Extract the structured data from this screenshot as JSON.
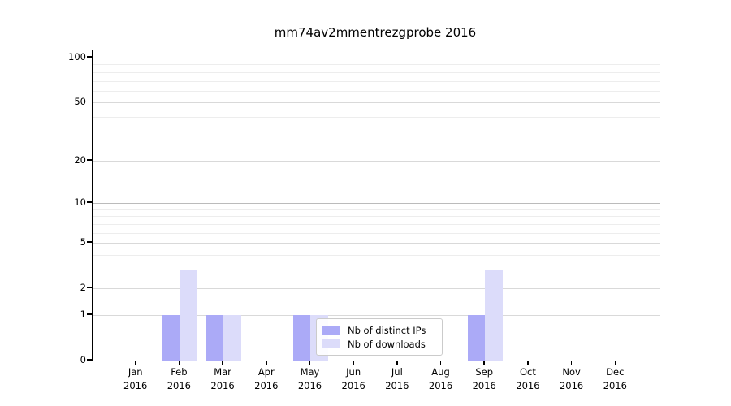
{
  "chart_data": {
    "type": "bar",
    "title": "mm74av2mmentrezgprobe 2016",
    "categories": [
      "Jan 2016",
      "Feb 2016",
      "Mar 2016",
      "Apr 2016",
      "May 2016",
      "Jun 2016",
      "Jul 2016",
      "Aug 2016",
      "Sep 2016",
      "Oct 2016",
      "Nov 2016",
      "Dec 2016"
    ],
    "month_labels": [
      "Jan",
      "Feb",
      "Mar",
      "Apr",
      "May",
      "Jun",
      "Jul",
      "Aug",
      "Sep",
      "Oct",
      "Nov",
      "Dec"
    ],
    "year_label": "2016",
    "series": [
      {
        "name": "Nb of distinct IPs",
        "color": "#abaaf7",
        "values": [
          0,
          1,
          1,
          0,
          1,
          0,
          0,
          0,
          1,
          0,
          0,
          0
        ]
      },
      {
        "name": "Nb of downloads",
        "color": "#dcdcfa",
        "values": [
          0,
          3,
          1,
          0,
          1,
          0,
          0,
          0,
          3,
          0,
          0,
          0
        ]
      }
    ],
    "xlabel": "",
    "ylabel": "",
    "yscale": "log1p",
    "ylim": [
      0,
      112
    ],
    "yticks": [
      0,
      1,
      2,
      5,
      10,
      20,
      50,
      100
    ],
    "minor_gridlines": [
      3,
      4,
      6,
      7,
      8,
      9,
      30,
      40,
      60,
      70,
      80,
      90
    ],
    "grid": true,
    "legend_position": "lower center",
    "colors": {
      "axis": "#000000",
      "major_grid": "#d9d9d9",
      "decade_grid": "#bbbbbb",
      "minor_grid": "#ededed",
      "legend_border": "#cbcbcb",
      "background": "#ffffff"
    }
  }
}
